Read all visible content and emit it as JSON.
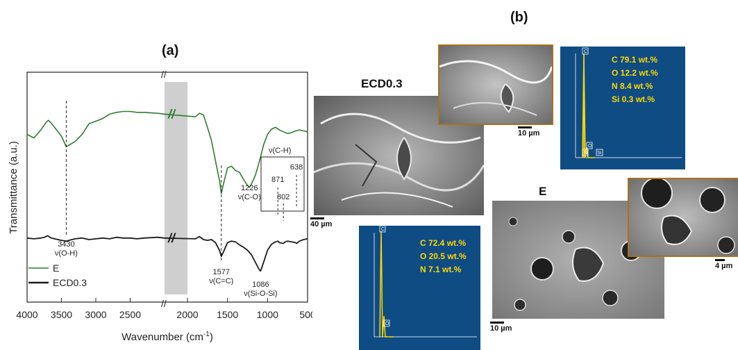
{
  "panel_a_label": "(a)",
  "panel_b_label": "(b)",
  "chart_data": {
    "type": "line",
    "title": "",
    "xlabel": "Wavenumber (cm",
    "xlabel_sup": "-1",
    "xlabel_close": ")",
    "ylabel": "Transmittance (a.u.)",
    "x_ticks": [
      "4000",
      "3500",
      "3000",
      "2500",
      "2000",
      "1500",
      "1000",
      "500"
    ],
    "x_range_left": [
      4000,
      2000
    ],
    "x_range_right": [
      2000,
      500
    ],
    "axis_break": "//",
    "legend_position": "bottom-left",
    "series": [
      {
        "name": "E",
        "color": "#2e7d2e",
        "x": [
          4000,
          3900,
          3800,
          3720,
          3690,
          3650,
          3600,
          3500,
          3430,
          3300,
          3200,
          3100,
          3000,
          2900,
          2800,
          2700,
          2600,
          2500,
          2400,
          2300,
          2100,
          2000,
          1900,
          1850,
          1800,
          1750,
          1700,
          1650,
          1600,
          1577,
          1550,
          1500,
          1450,
          1400,
          1350,
          1300,
          1250,
          1226,
          1200,
          1150,
          1100,
          1050,
          1000,
          950,
          900,
          850,
          800,
          750,
          700,
          650,
          600,
          550,
          500
        ],
        "y": [
          0.72,
          0.68,
          0.77,
          0.86,
          0.88,
          0.85,
          0.8,
          0.7,
          0.58,
          0.64,
          0.72,
          0.84,
          0.87,
          0.9,
          0.95,
          0.97,
          0.98,
          0.98,
          0.97,
          0.97,
          0.96,
          0.95,
          0.92,
          0.96,
          0.94,
          0.8,
          0.65,
          0.42,
          0.2,
          0.05,
          0.16,
          0.34,
          0.36,
          0.31,
          0.29,
          0.21,
          0.14,
          0.12,
          0.16,
          0.26,
          0.42,
          0.6,
          0.72,
          0.78,
          0.8,
          0.77,
          0.75,
          0.73,
          0.74,
          0.76,
          0.77,
          0.76,
          0.75
        ]
      },
      {
        "name": "ECD0.3",
        "color": "#1a1a1a",
        "x": [
          4000,
          3900,
          3800,
          3750,
          3700,
          3650,
          3600,
          3500,
          3430,
          3350,
          3300,
          3200,
          3100,
          3000,
          2900,
          2800,
          2700,
          2600,
          2500,
          2400,
          2300,
          2100,
          2000,
          1900,
          1850,
          1800,
          1750,
          1700,
          1650,
          1600,
          1577,
          1550,
          1500,
          1450,
          1400,
          1350,
          1300,
          1250,
          1200,
          1150,
          1100,
          1086,
          1050,
          1000,
          950,
          900,
          871,
          850,
          802,
          780,
          750,
          700,
          650,
          638,
          600,
          550,
          500
        ],
        "y": [
          0.52,
          0.51,
          0.52,
          0.53,
          0.55,
          0.52,
          0.51,
          0.49,
          0.48,
          0.5,
          0.51,
          0.52,
          0.5,
          0.51,
          0.52,
          0.51,
          0.53,
          0.52,
          0.52,
          0.51,
          0.52,
          0.53,
          0.52,
          0.51,
          0.54,
          0.5,
          0.49,
          0.5,
          0.46,
          0.36,
          0.28,
          0.34,
          0.46,
          0.48,
          0.47,
          0.43,
          0.4,
          0.36,
          0.3,
          0.2,
          0.1,
          0.09,
          0.2,
          0.36,
          0.44,
          0.47,
          0.48,
          0.46,
          0.45,
          0.47,
          0.48,
          0.47,
          0.46,
          0.45,
          0.48,
          0.5,
          0.51
        ]
      }
    ],
    "peak_labels": [
      {
        "x": 3430,
        "line1": "3430",
        "line2": "ν(O-H)",
        "series": "ECD0.3",
        "y_top": 0.6
      },
      {
        "x": 1577,
        "line1": "1577",
        "line2": "ν(C=C)",
        "series": "ECD0.3",
        "y_top": 0.22
      },
      {
        "x": 1226,
        "line1": "1226",
        "line2": "ν(C-O)",
        "series": "E",
        "y_top": 0.12
      },
      {
        "x": 1086,
        "line1": "1086",
        "line2": "ν(Si-O-Si)",
        "series": "ECD0.3",
        "y_top": 0.09
      }
    ],
    "inset_box_title": "ν(C-H)",
    "inset_labels": [
      {
        "x": 871,
        "text": "871"
      },
      {
        "x": 802,
        "text": "802"
      },
      {
        "x": 638,
        "text": "638"
      }
    ]
  },
  "panel_b": {
    "sample1_label": "ECD0.3",
    "sample1_scale_main": "40 µm",
    "sample1_scale_inset": "10 µm",
    "sample1_edx": [
      "C 79.1 wt.%",
      "O 12.2 wt.%",
      "N 8.4 wt.%",
      "Si 0.3 wt.%"
    ],
    "sample2_label": "E",
    "sample2_scale_main": "10 µm",
    "sample2_scale_inset": "4 µm",
    "sample2_edx": [
      "C 72.4 wt.%",
      "O 20.5 wt.%",
      "N 7.1 wt.%"
    ],
    "edx_peak_labels": [
      "C",
      "O",
      "N",
      "Si"
    ]
  }
}
